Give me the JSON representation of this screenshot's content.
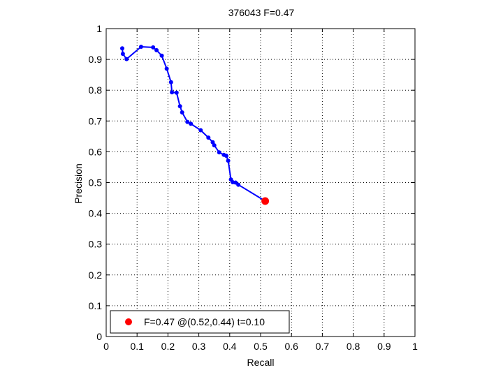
{
  "chart_data": {
    "type": "line",
    "title": "376043 F=0.47",
    "xlabel": "Recall",
    "ylabel": "Precision",
    "xlim": [
      0,
      1
    ],
    "ylim": [
      0,
      1
    ],
    "xticks": [
      "0",
      "0.1",
      "0.2",
      "0.3",
      "0.4",
      "0.5",
      "0.6",
      "0.7",
      "0.8",
      "0.9",
      "1"
    ],
    "yticks": [
      "0",
      "0.1",
      "0.2",
      "0.3",
      "0.4",
      "0.5",
      "0.6",
      "0.7",
      "0.8",
      "0.9",
      "1"
    ],
    "grid": true,
    "grid_style": "dotted",
    "series": [
      {
        "color": "#0000ff",
        "marker": "filled-circle",
        "x": [
          0.052,
          0.054,
          0.066,
          0.113,
          0.152,
          0.163,
          0.18,
          0.196,
          0.21,
          0.213,
          0.228,
          0.239,
          0.246,
          0.263,
          0.274,
          0.306,
          0.331,
          0.345,
          0.35,
          0.366,
          0.381,
          0.389,
          0.395,
          0.404,
          0.41,
          0.419,
          0.428,
          0.515
        ],
        "y": [
          0.936,
          0.918,
          0.901,
          0.941,
          0.939,
          0.93,
          0.912,
          0.87,
          0.826,
          0.793,
          0.792,
          0.748,
          0.728,
          0.697,
          0.691,
          0.67,
          0.646,
          0.631,
          0.621,
          0.598,
          0.59,
          0.587,
          0.571,
          0.51,
          0.501,
          0.5,
          0.493,
          0.44
        ]
      }
    ],
    "best_point": {
      "x": 0.515,
      "y": 0.44,
      "color": "#ff0000",
      "marker": "large-filled-circle"
    },
    "legend": {
      "position": "bottom-left",
      "label": "F=0.47 @(0.52,0.44) t=0.10"
    }
  }
}
